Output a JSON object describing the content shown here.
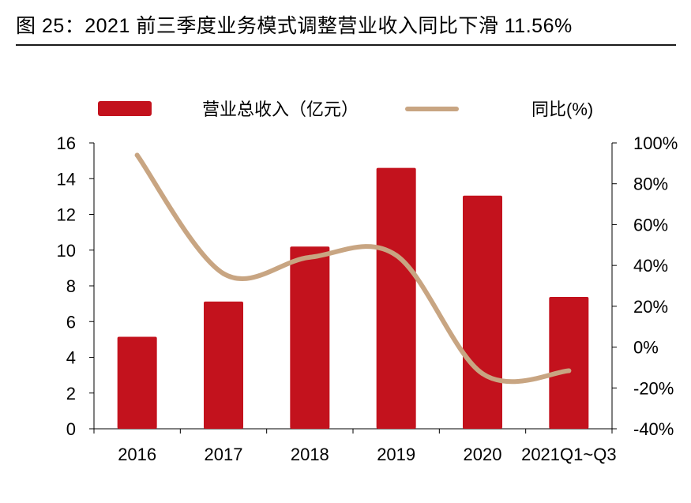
{
  "header": {
    "figure_title": "图 25：2021 前三季度业务模式调整营业收入同比下滑 11.56%"
  },
  "chart_data": {
    "type": "bar",
    "categories": [
      "2016",
      "2017",
      "2018",
      "2019",
      "2020",
      "2021Q1~Q3"
    ],
    "series": [
      {
        "name": "营业总收入（亿元）",
        "type": "bar",
        "axis": "left",
        "color": "#c3121d",
        "values": [
          5.15,
          7.12,
          10.2,
          14.6,
          13.05,
          7.38
        ]
      },
      {
        "name": "同比(%)",
        "type": "line",
        "axis": "right",
        "color": "#c8a582",
        "values": [
          94,
          36,
          44,
          45,
          -13,
          -11.56
        ]
      }
    ],
    "y_left": {
      "lim": [
        0,
        16
      ],
      "ticks": [
        0,
        2,
        4,
        6,
        8,
        10,
        12,
        14,
        16
      ],
      "tick_labels": [
        "0",
        "2",
        "4",
        "6",
        "8",
        "10",
        "12",
        "14",
        "16"
      ]
    },
    "y_right": {
      "lim": [
        -40,
        100
      ],
      "ticks": [
        -40,
        -20,
        0,
        20,
        40,
        60,
        80,
        100
      ],
      "tick_labels": [
        "-40%",
        "-20%",
        "0%",
        "20%",
        "40%",
        "60%",
        "80%",
        "100%"
      ]
    },
    "legend": {
      "position": "top",
      "entries": [
        "营业总收入（亿元）",
        "同比(%)"
      ]
    },
    "grid": false
  }
}
